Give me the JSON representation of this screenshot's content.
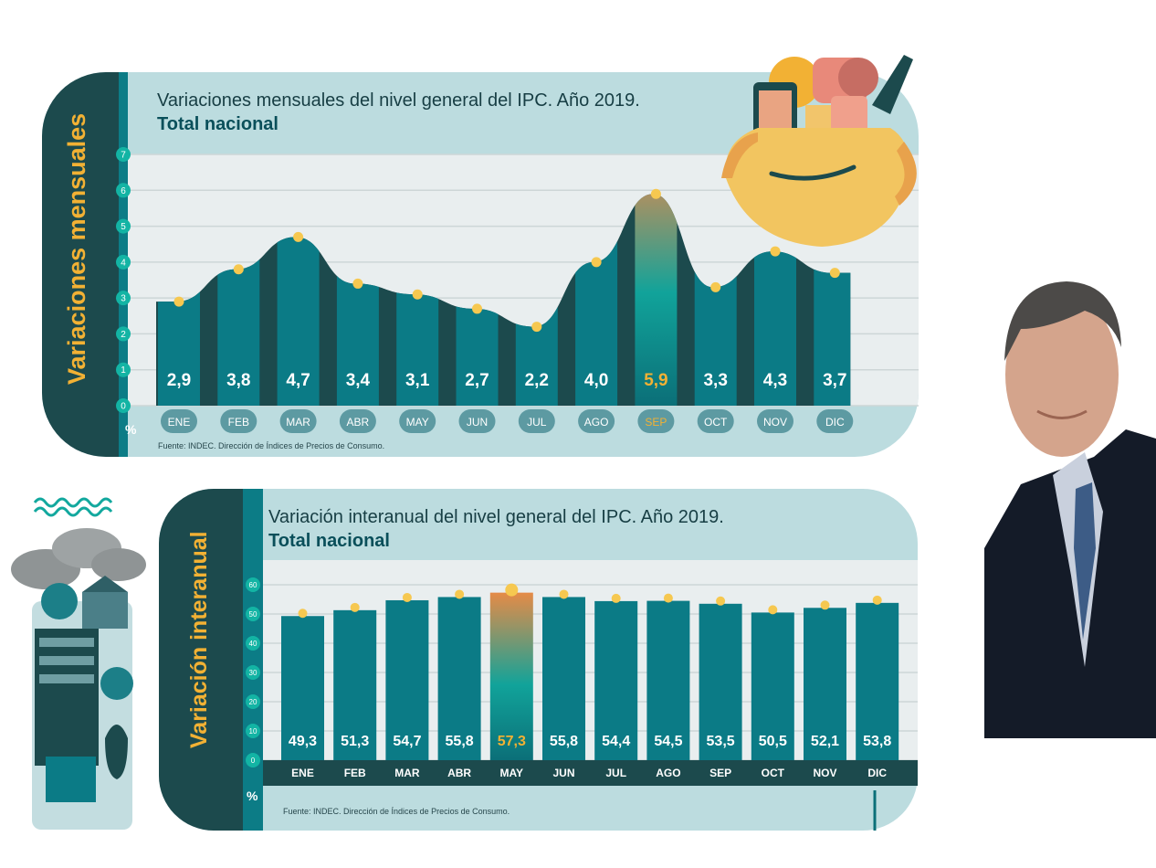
{
  "colors": {
    "dark_teal": "#1c4a4d",
    "bar_teal": "#0b7b86",
    "bg_light": "#bcdcdf",
    "band_light": "#e6eced",
    "accent_gold": "#f2b134",
    "highlight_orange": "#e48a4a",
    "marker_yellow": "#f6c850"
  },
  "panel1": {
    "side_label": "Variaciones mensuales",
    "title_line1": "Variaciones mensuales del nivel general del IPC. Año 2019.",
    "title_line2": "Total nacional",
    "unit": "%",
    "source": "Fuente: INDEC. Dirección de Índices de Precios de Consumo."
  },
  "panel2": {
    "side_label": "Variación interanual",
    "title_line1": "Variación interanual del nivel general del IPC. Año 2019.",
    "title_line2": "Total nacional",
    "unit": "%",
    "source": "Fuente: INDEC. Dirección de Índices de Precios de Consumo."
  },
  "chart_data": [
    {
      "type": "area",
      "title": "Variaciones mensuales del nivel general del IPC. Año 2019.",
      "subtitle": "Total nacional",
      "ylabel": "%",
      "ylim": [
        0,
        7
      ],
      "yticks": [
        "0",
        "1",
        "2",
        "3",
        "4",
        "5",
        "6",
        "7"
      ],
      "categories": [
        "ENE",
        "FEB",
        "MAR",
        "ABR",
        "MAY",
        "JUN",
        "JUL",
        "AGO",
        "SEP",
        "OCT",
        "NOV",
        "DIC"
      ],
      "values": [
        2.9,
        3.8,
        4.7,
        3.4,
        3.1,
        2.7,
        2.2,
        4.0,
        5.9,
        3.3,
        4.3,
        3.7
      ],
      "labels": [
        "2,9",
        "3,8",
        "4,7",
        "3,4",
        "3,1",
        "2,7",
        "2,2",
        "4,0",
        "5,9",
        "3,3",
        "4,3",
        "3,7"
      ],
      "highlight": "SEP",
      "grid": true
    },
    {
      "type": "bar",
      "title": "Variación interanual del nivel general del IPC. Año 2019.",
      "subtitle": "Total nacional",
      "ylabel": "%",
      "ylim": [
        0,
        60
      ],
      "yticks": [
        "0",
        "10",
        "20",
        "30",
        "40",
        "50",
        "60"
      ],
      "categories": [
        "ENE",
        "FEB",
        "MAR",
        "ABR",
        "MAY",
        "JUN",
        "JUL",
        "AGO",
        "SEP",
        "OCT",
        "NOV",
        "DIC"
      ],
      "values": [
        49.3,
        51.3,
        54.7,
        55.8,
        57.3,
        55.8,
        54.4,
        54.5,
        53.5,
        50.5,
        52.1,
        53.8
      ],
      "labels": [
        "49,3",
        "51,3",
        "54,7",
        "55,8",
        "57,3",
        "55,8",
        "54,4",
        "54,5",
        "53,5",
        "50,5",
        "52,1",
        "53,8"
      ],
      "highlight": "MAY",
      "grid": true
    }
  ]
}
